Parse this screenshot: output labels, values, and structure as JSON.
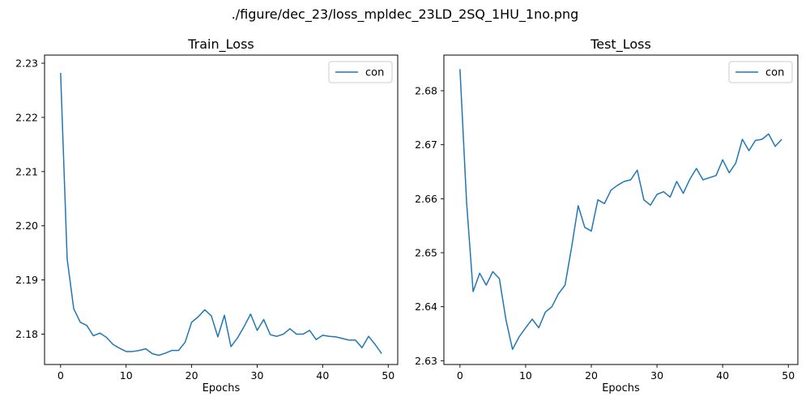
{
  "figure": {
    "suptitle": "./figure/dec_23/loss_mpldec_23LD_2SQ_1HU_1no.png"
  },
  "chart_data": [
    {
      "type": "line",
      "title": "Train_Loss",
      "xlabel": "Epochs",
      "ylabel": "",
      "legend_position": "upper right",
      "grid": false,
      "xlim": [
        -2.45,
        51.45
      ],
      "ylim": [
        2.1744,
        2.2315
      ],
      "xticks": [
        0,
        10,
        20,
        30,
        40,
        50
      ],
      "yticks": [
        2.18,
        2.19,
        2.2,
        2.21,
        2.22,
        2.23
      ],
      "ytick_labels": [
        "2.18",
        "2.19",
        "2.20",
        "2.21",
        "2.22",
        "2.23"
      ],
      "series": [
        {
          "name": "con",
          "color": "#1f77b4",
          "x": [
            0,
            1,
            2,
            3,
            4,
            5,
            6,
            7,
            8,
            9,
            10,
            11,
            12,
            13,
            14,
            15,
            16,
            17,
            18,
            19,
            20,
            21,
            22,
            23,
            24,
            25,
            26,
            27,
            28,
            29,
            30,
            31,
            32,
            33,
            34,
            35,
            36,
            37,
            38,
            39,
            40,
            41,
            42,
            43,
            44,
            45,
            46,
            47,
            48,
            49
          ],
          "values": [
            2.2282,
            2.1939,
            2.1847,
            2.1822,
            2.1816,
            2.1797,
            2.1802,
            2.1794,
            2.1781,
            2.1774,
            2.1768,
            2.1768,
            2.177,
            2.1773,
            2.1764,
            2.1761,
            2.1765,
            2.177,
            2.177,
            2.1785,
            2.1822,
            2.1832,
            2.1845,
            2.1834,
            2.1795,
            2.1835,
            2.1777,
            2.1793,
            2.1814,
            2.1837,
            2.1807,
            2.1827,
            2.1799,
            2.1796,
            2.18,
            2.181,
            2.18,
            2.18,
            2.1807,
            2.179,
            2.1798,
            2.1796,
            2.1795,
            2.1792,
            2.1789,
            2.1789,
            2.1775,
            2.1796,
            2.1781,
            2.1764
          ]
        }
      ]
    },
    {
      "type": "line",
      "title": "Test_Loss",
      "xlabel": "Epochs",
      "ylabel": "",
      "legend_position": "upper right",
      "grid": false,
      "xlim": [
        -2.45,
        51.45
      ],
      "ylim": [
        2.6293,
        2.6866
      ],
      "xticks": [
        0,
        10,
        20,
        30,
        40,
        50
      ],
      "yticks": [
        2.63,
        2.64,
        2.65,
        2.66,
        2.67,
        2.68
      ],
      "ytick_labels": [
        "2.63",
        "2.64",
        "2.65",
        "2.66",
        "2.67",
        "2.68"
      ],
      "series": [
        {
          "name": "con",
          "color": "#1f77b4",
          "x": [
            0,
            1,
            2,
            3,
            4,
            5,
            6,
            7,
            8,
            9,
            10,
            11,
            12,
            13,
            14,
            15,
            16,
            17,
            18,
            19,
            20,
            21,
            22,
            23,
            24,
            25,
            26,
            27,
            28,
            29,
            30,
            31,
            32,
            33,
            34,
            35,
            36,
            37,
            38,
            39,
            40,
            41,
            42,
            43,
            44,
            45,
            46,
            47,
            48,
            49
          ],
          "values": [
            2.684,
            2.6595,
            2.6428,
            2.6462,
            2.644,
            2.6465,
            2.6452,
            2.6376,
            2.6321,
            2.6344,
            2.6361,
            2.6377,
            2.6361,
            2.639,
            2.64,
            2.6424,
            2.644,
            2.651,
            2.6587,
            2.6547,
            2.654,
            2.6598,
            2.6591,
            2.6616,
            2.6625,
            2.6632,
            2.6635,
            2.6653,
            2.6598,
            2.6588,
            2.6608,
            2.6613,
            2.6603,
            2.6632,
            2.661,
            2.6636,
            2.6656,
            2.6635,
            2.6639,
            2.6643,
            2.6672,
            2.6648,
            2.6666,
            2.671,
            2.6689,
            2.6708,
            2.671,
            2.672,
            2.6697,
            2.671
          ]
        }
      ]
    }
  ]
}
